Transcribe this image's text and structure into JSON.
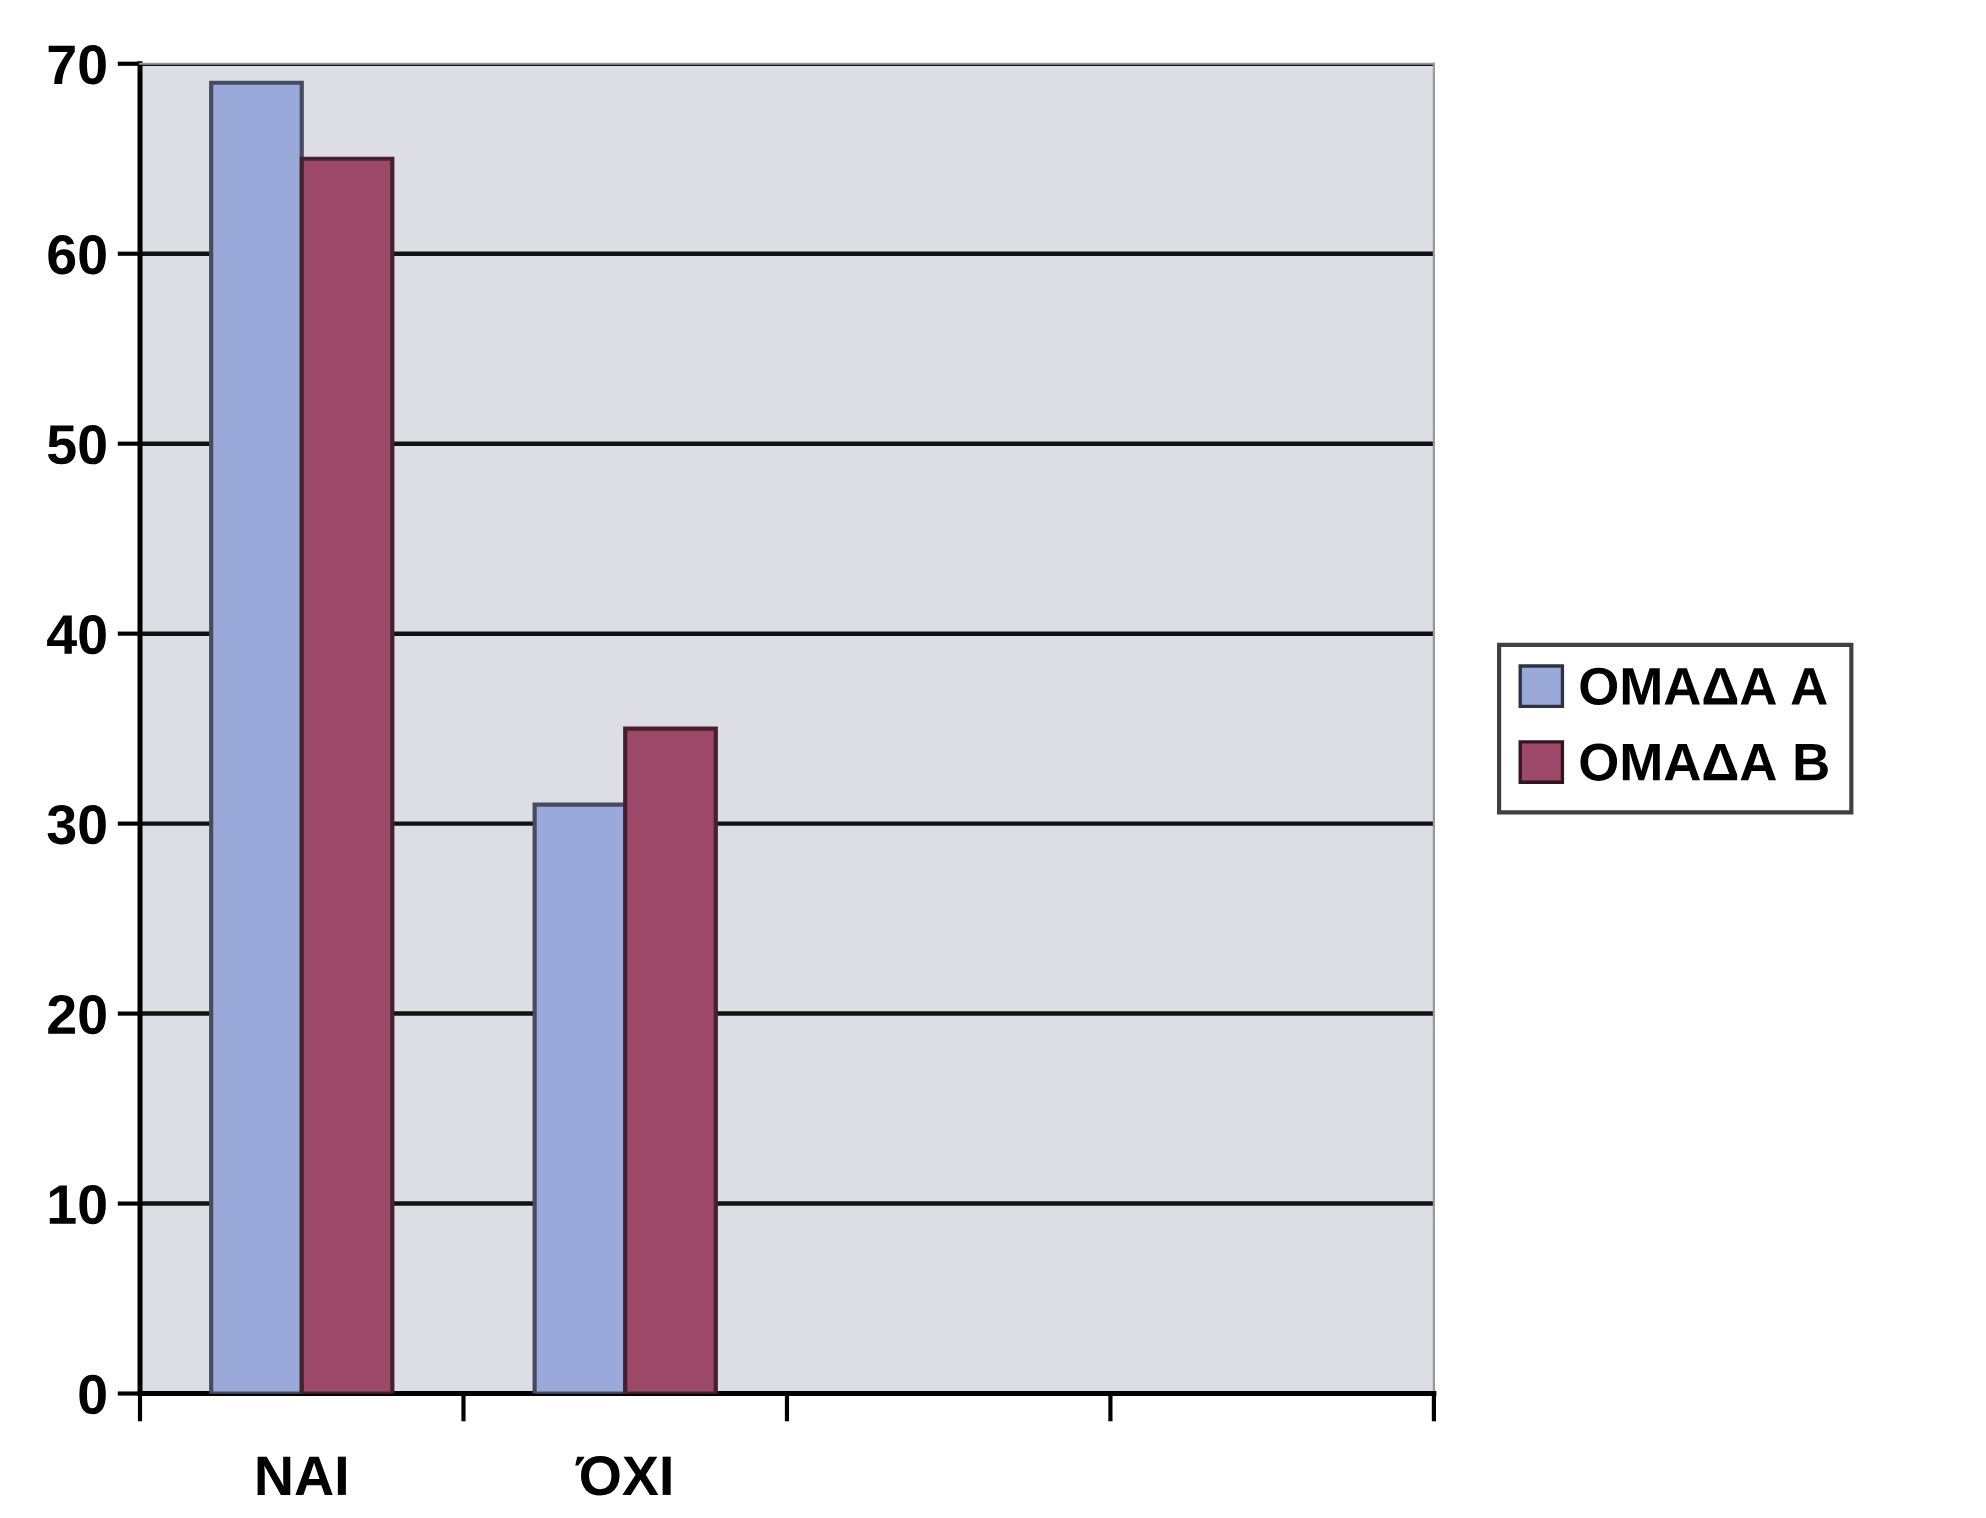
{
  "chart_data": {
    "type": "bar",
    "categories": [
      "ΝΑΙ",
      "ΌΧΙ",
      null,
      null
    ],
    "series": [
      {
        "name": "ΟΜΑΔΑ Α",
        "color": "#9aa9d9",
        "values": [
          69,
          31,
          null,
          null
        ]
      },
      {
        "name": "ΟΜΑΔΑ Β",
        "color": "#9c4868",
        "values": [
          65,
          35,
          null,
          null
        ]
      }
    ],
    "ylim": [
      0,
      70
    ],
    "yticks": [
      0,
      10,
      20,
      30,
      40,
      50,
      60,
      70
    ],
    "grid": "y",
    "legend": "right"
  }
}
